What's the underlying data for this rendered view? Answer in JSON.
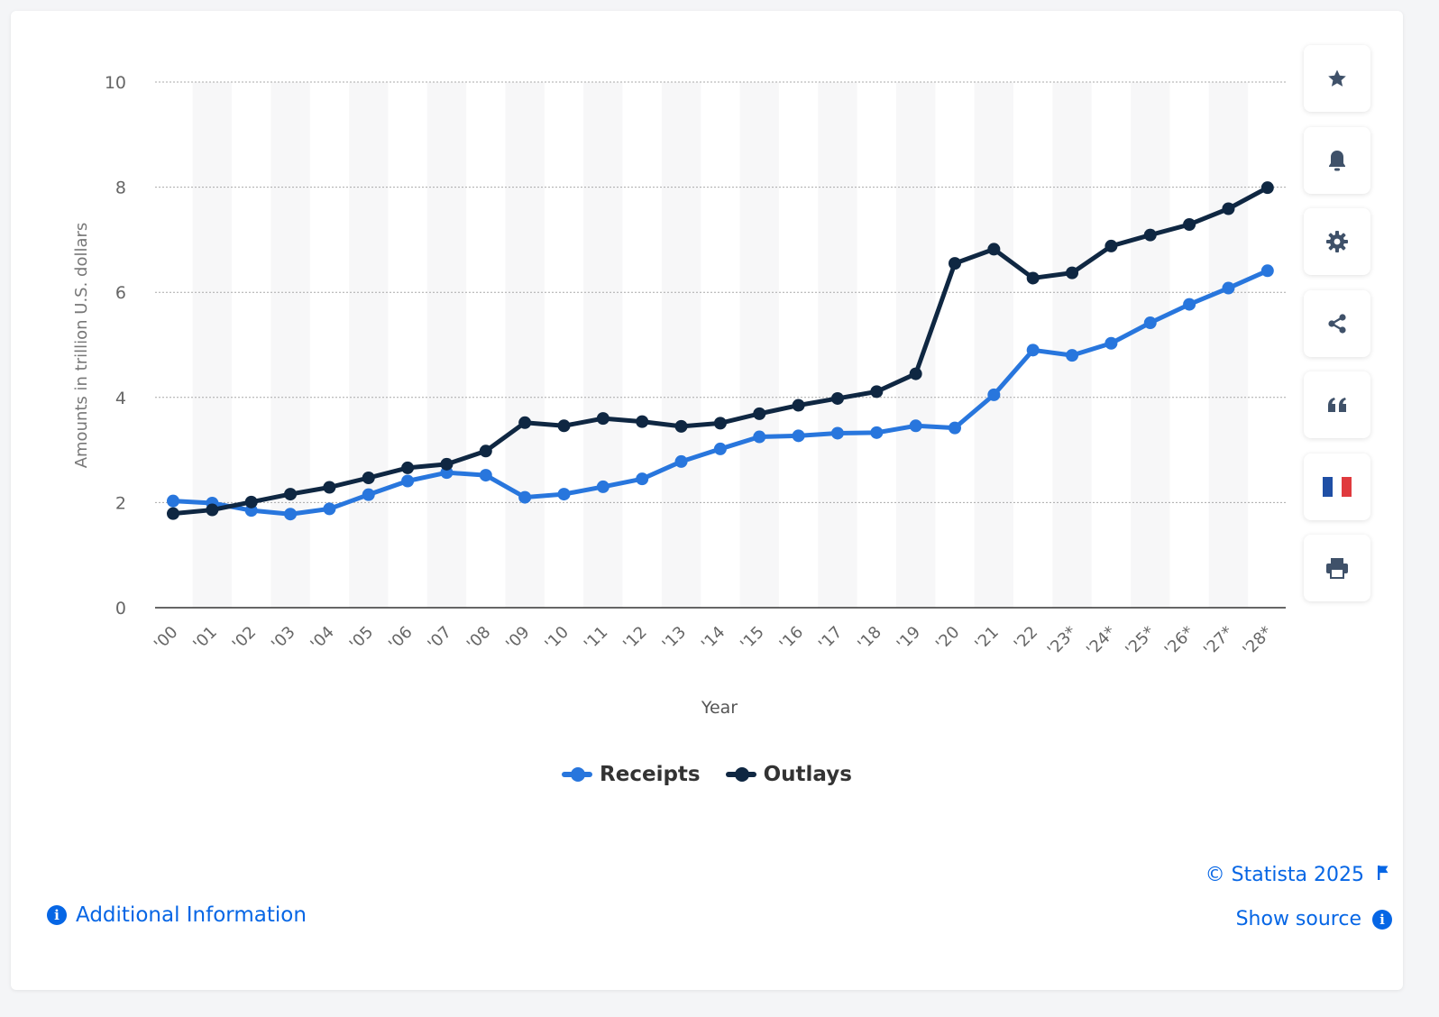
{
  "chart_data": {
    "type": "line",
    "title": "",
    "xlabel": "Year",
    "ylabel": "Amounts in trillion U.S. dollars",
    "ylim": [
      0,
      10
    ],
    "yticks": [
      "0",
      "2",
      "4",
      "6",
      "8",
      "10"
    ],
    "grid": true,
    "legend_position": "bottom",
    "categories": [
      "'00",
      "'01",
      "'02",
      "'03",
      "'04",
      "'05",
      "'06",
      "'07",
      "'08",
      "'09",
      "'10",
      "'11",
      "'12",
      "'13",
      "'14",
      "'15",
      "'16",
      "'17",
      "'18",
      "'19",
      "'20",
      "'21",
      "'22",
      "'23*",
      "'24*",
      "'25*",
      "'26*",
      "'27*",
      "'28*"
    ],
    "series": [
      {
        "name": "Receipts",
        "color": "#2876dd",
        "values": [
          2.03,
          1.99,
          1.85,
          1.78,
          1.88,
          2.15,
          2.41,
          2.57,
          2.52,
          2.1,
          2.16,
          2.3,
          2.45,
          2.78,
          3.02,
          3.25,
          3.27,
          3.32,
          3.33,
          3.46,
          3.42,
          4.05,
          4.9,
          4.8,
          5.03,
          5.42,
          5.77,
          6.08,
          6.41
        ]
      },
      {
        "name": "Outlays",
        "color": "#0f2742",
        "values": [
          1.79,
          1.86,
          2.01,
          2.16,
          2.29,
          2.47,
          2.66,
          2.73,
          2.98,
          3.52,
          3.46,
          3.6,
          3.54,
          3.45,
          3.51,
          3.69,
          3.85,
          3.98,
          4.11,
          4.45,
          6.55,
          6.82,
          6.27,
          6.37,
          6.88,
          7.09,
          7.29,
          7.59,
          7.99
        ]
      }
    ]
  },
  "toolbar": {
    "items": [
      {
        "name": "favorite",
        "icon": "star-icon"
      },
      {
        "name": "notification",
        "icon": "bell-icon"
      },
      {
        "name": "settings",
        "icon": "gear-icon"
      },
      {
        "name": "share",
        "icon": "share-icon"
      },
      {
        "name": "cite",
        "icon": "quote-icon"
      },
      {
        "name": "language",
        "icon": "french-flag-icon"
      },
      {
        "name": "print",
        "icon": "printer-icon"
      }
    ]
  },
  "footer": {
    "additional_info": "Additional Information",
    "copyright": "© Statista 2025",
    "show_source": "Show source"
  },
  "colors": {
    "link": "#0666e5",
    "icon": "#3f5169",
    "axis_text": "#666666",
    "band": "#f7f7f8"
  }
}
